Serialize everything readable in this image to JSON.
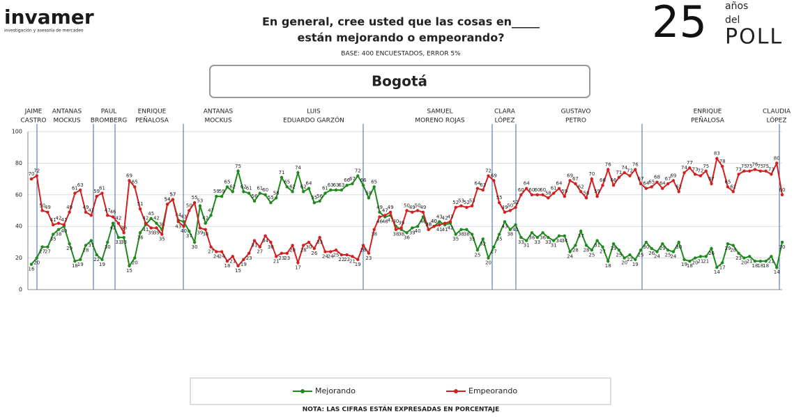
{
  "brand": {
    "name": "invamer",
    "tagline": "investigación y asesoría de mercadeo"
  },
  "poll": {
    "number": "25",
    "line1": "años",
    "line2": "del",
    "line3": "POLL"
  },
  "chart_data": {
    "type": "line",
    "title": [
      "En general, cree usted que las cosas en_____",
      "están mejorando o empeorando?"
    ],
    "subtitle": "BASE: 400 ENCUESTADOS, ERROR 5%",
    "region": "Bogotá",
    "note": "NOTA: LAS CIFRAS ESTÁN EXPRESADAS EN PORCENTAJE",
    "ylim": [
      0,
      100
    ],
    "yticks": [
      0,
      20,
      40,
      60,
      80,
      100
    ],
    "annotations": [
      [
        "JAIME",
        "CASTRO"
      ],
      [
        "ANTANAS",
        "MOCKUS"
      ],
      [
        "PAUL",
        "BROMBERG"
      ],
      [
        "ENRIQUE",
        "PEÑALOSA"
      ],
      [
        "ANTANAS",
        "MOCKUS"
      ],
      [
        "LUIS",
        "EDUARDO GARZÓN"
      ],
      [
        "SAMUEL",
        "MORENO ROJAS"
      ],
      [
        "CLARA",
        "LÓPEZ"
      ],
      [
        "GUSTAVO",
        "PETRO"
      ],
      [
        "ENRIQUE",
        "PEÑALOSA"
      ],
      [
        "CLAUDIA",
        "LÓPEZ"
      ]
    ],
    "series": [
      {
        "name": "Mejorando",
        "color": "#1e8a1e",
        "values": [
          16,
          20,
          27,
          27,
          35,
          38,
          40,
          29,
          18,
          19,
          28,
          31,
          22,
          19,
          30,
          42,
          33,
          33,
          15,
          20,
          36,
          41,
          45,
          42,
          38,
          54,
          57,
          44,
          43,
          37,
          30,
          53,
          42,
          47,
          59,
          59,
          65,
          62,
          75,
          62,
          61,
          56,
          61,
          60,
          55,
          58,
          71,
          65,
          62,
          74,
          62,
          64,
          55,
          56,
          61,
          63,
          63,
          63,
          66,
          67,
          72,
          66,
          58,
          65,
          49,
          46,
          47,
          40,
          38,
          36,
          39,
          40,
          46,
          38,
          40,
          43,
          41,
          42,
          35,
          38,
          38,
          35,
          25,
          32,
          20,
          27,
          35,
          43,
          38,
          41,
          33,
          31,
          36,
          33,
          36,
          33,
          31,
          34,
          34,
          24,
          28,
          37,
          28,
          25,
          31,
          27,
          18,
          29,
          25,
          20,
          22,
          19,
          25,
          30,
          26,
          24,
          29,
          25,
          24,
          30,
          19,
          18,
          20,
          21,
          21,
          26,
          14,
          17,
          29,
          28,
          23,
          20,
          21,
          18,
          18,
          18,
          21,
          14,
          30
        ]
      },
      {
        "name": "Empeorando",
        "color": "#d21f1f",
        "values": [
          70,
          72,
          50,
          49,
          41,
          42,
          41,
          49,
          61,
          63,
          49,
          47,
          59,
          61,
          47,
          46,
          42,
          36,
          69,
          65,
          51,
          42,
          39,
          39,
          35,
          54,
          57,
          43,
          40,
          50,
          55,
          39,
          38,
          27,
          24,
          24,
          18,
          21,
          15,
          19,
          23,
          31,
          27,
          34,
          30,
          21,
          23,
          23,
          28,
          17,
          28,
          30,
          26,
          33,
          24,
          24,
          25,
          22,
          22,
          21,
          19,
          28,
          23,
          38,
          46,
          47,
          49,
          38,
          39,
          50,
          49,
          50,
          49,
          38,
          40,
          41,
          42,
          43,
          52,
          53,
          52,
          53,
          64,
          63,
          72,
          69,
          55,
          49,
          50,
          52,
          60,
          64,
          60,
          60,
          60,
          58,
          61,
          64,
          59,
          69,
          67,
          62,
          58,
          70,
          59,
          66,
          76,
          66,
          71,
          74,
          72,
          76,
          67,
          64,
          65,
          68,
          64,
          67,
          69,
          62,
          74,
          77,
          73,
          72,
          75,
          67,
          83,
          78,
          65,
          62,
          73,
          75,
          75,
          76,
          75,
          75,
          73,
          80,
          60
        ]
      }
    ]
  }
}
